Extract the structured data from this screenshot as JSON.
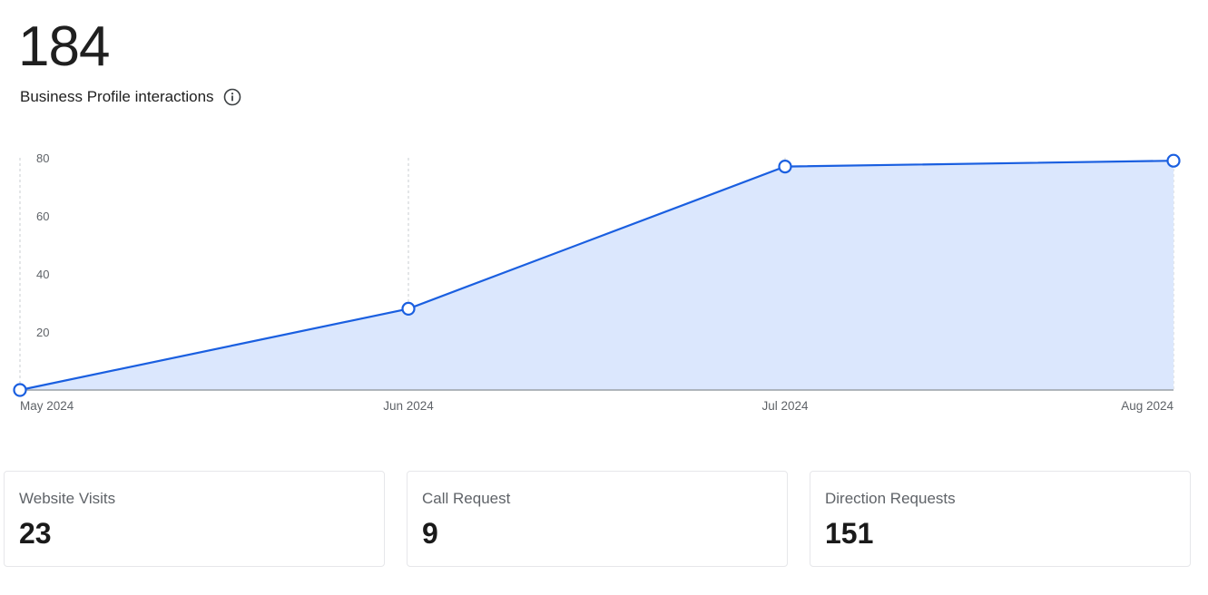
{
  "header": {
    "total": "184",
    "subtitle": "Business Profile interactions",
    "info_icon": "info-circle-icon"
  },
  "chart_data": {
    "type": "area",
    "title": "Business Profile interactions",
    "categories": [
      "May 2024",
      "Jun 2024",
      "Jul 2024",
      "Aug 2024"
    ],
    "series": [
      {
        "name": "Business Profile interactions",
        "values": [
          0,
          28,
          77,
          79
        ]
      }
    ],
    "y_ticks": [
      "20",
      "40",
      "60",
      "80"
    ],
    "ylim": [
      0,
      80
    ],
    "xlabel": "",
    "ylabel": "",
    "grid": "vertical dashed lines at each month",
    "legend": "none",
    "colors": {
      "line": "#1a5fe0",
      "fill": "#dbe7fd",
      "axis": "#9aa0a6",
      "grid": "#c8ccd2"
    }
  },
  "cards": [
    {
      "label": "Website Visits",
      "value": "23"
    },
    {
      "label": "Call Request",
      "value": "9"
    },
    {
      "label": "Direction Requests",
      "value": "151"
    }
  ]
}
